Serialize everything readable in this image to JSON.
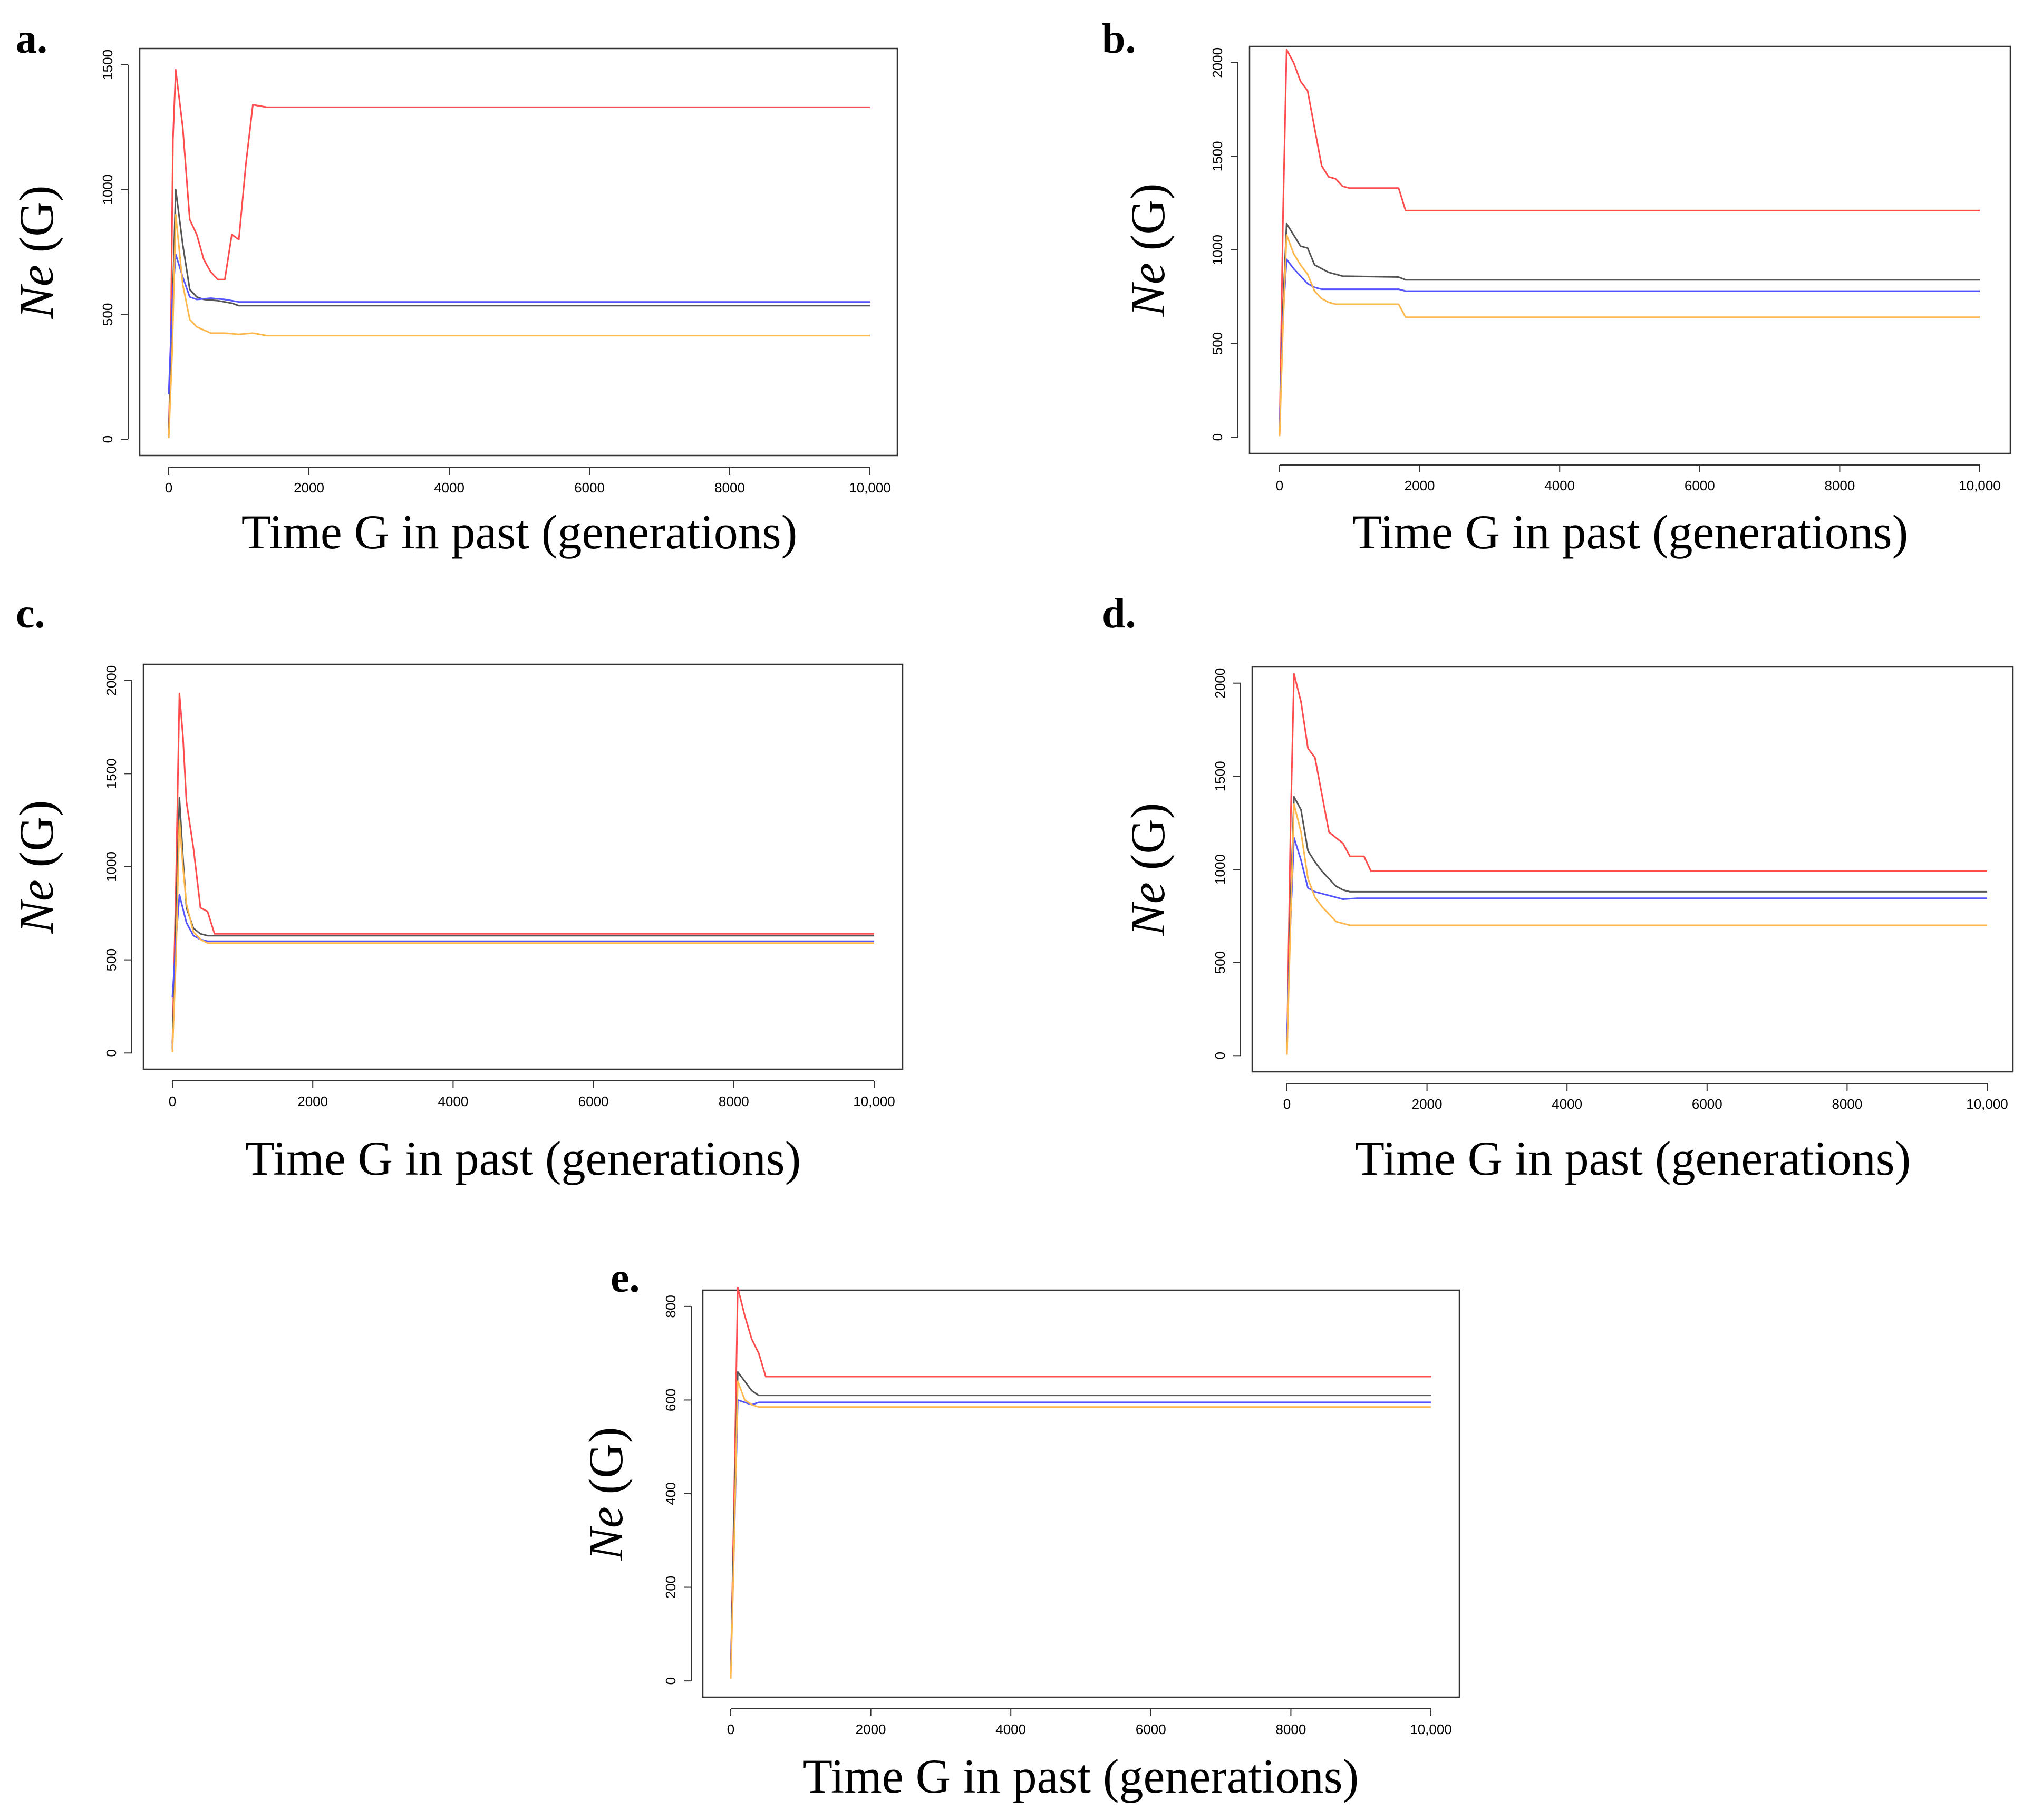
{
  "series_names": [
    "red",
    "black",
    "blue",
    "orange"
  ],
  "colors": {
    "red": "#ff4d4d",
    "black": "#555555",
    "blue": "#5555ff",
    "orange": "#ffb84d"
  },
  "chart_data": [
    {
      "panel": "a.",
      "type": "line",
      "xlabel": "Time G in past (generations)",
      "ylabel_italic": "Ne",
      "ylabel_rest": " (G)",
      "xlim": [
        0,
        10000
      ],
      "ylim": [
        0,
        1500
      ],
      "xticks": [
        0,
        2000,
        4000,
        6000,
        8000,
        10000
      ],
      "xtick_labels": [
        "0",
        "2000",
        "4000",
        "6000",
        "8000",
        "10,000"
      ],
      "yticks": [
        0,
        500,
        1000,
        1500
      ],
      "ytick_labels": [
        "0",
        "500",
        "1000",
        "1500"
      ],
      "series": [
        {
          "name": "red",
          "points": [
            [
              0,
              20
            ],
            [
              30,
              400
            ],
            [
              60,
              1200
            ],
            [
              100,
              1480
            ],
            [
              200,
              1250
            ],
            [
              300,
              880
            ],
            [
              400,
              820
            ],
            [
              500,
              720
            ],
            [
              600,
              670
            ],
            [
              700,
              640
            ],
            [
              800,
              640
            ],
            [
              900,
              820
            ],
            [
              1000,
              800
            ],
            [
              1100,
              1100
            ],
            [
              1200,
              1340
            ],
            [
              1400,
              1330
            ],
            [
              10000,
              1330
            ]
          ]
        },
        {
          "name": "black",
          "points": [
            [
              0,
              10
            ],
            [
              50,
              500
            ],
            [
              100,
              1000
            ],
            [
              200,
              780
            ],
            [
              300,
              600
            ],
            [
              400,
              570
            ],
            [
              500,
              560
            ],
            [
              700,
              555
            ],
            [
              900,
              545
            ],
            [
              1000,
              535
            ],
            [
              10000,
              535
            ]
          ]
        },
        {
          "name": "blue",
          "points": [
            [
              0,
              180
            ],
            [
              50,
              550
            ],
            [
              100,
              740
            ],
            [
              200,
              650
            ],
            [
              300,
              570
            ],
            [
              400,
              560
            ],
            [
              600,
              565
            ],
            [
              800,
              560
            ],
            [
              1000,
              550
            ],
            [
              10000,
              550
            ]
          ]
        },
        {
          "name": "orange",
          "points": [
            [
              0,
              5
            ],
            [
              50,
              350
            ],
            [
              100,
              900
            ],
            [
              200,
              620
            ],
            [
              300,
              480
            ],
            [
              400,
              450
            ],
            [
              600,
              425
            ],
            [
              800,
              425
            ],
            [
              1000,
              420
            ],
            [
              1200,
              425
            ],
            [
              1400,
              415
            ],
            [
              10000,
              415
            ]
          ]
        }
      ]
    },
    {
      "panel": "b.",
      "type": "line",
      "xlabel": "Time G in past (generations)",
      "ylabel_italic": "Ne",
      "ylabel_rest": " (G)",
      "xlim": [
        0,
        10000
      ],
      "ylim": [
        0,
        2000
      ],
      "xticks": [
        0,
        2000,
        4000,
        6000,
        8000,
        10000
      ],
      "xtick_labels": [
        "0",
        "2000",
        "4000",
        "6000",
        "8000",
        "10,000"
      ],
      "yticks": [
        0,
        500,
        1000,
        1500,
        2000
      ],
      "ytick_labels": [
        "0",
        "500",
        "1000",
        "1500",
        "2000"
      ],
      "series": [
        {
          "name": "red",
          "points": [
            [
              0,
              10
            ],
            [
              50,
              1200
            ],
            [
              100,
              2070
            ],
            [
              200,
              2000
            ],
            [
              300,
              1900
            ],
            [
              400,
              1850
            ],
            [
              500,
              1650
            ],
            [
              600,
              1450
            ],
            [
              700,
              1390
            ],
            [
              800,
              1380
            ],
            [
              900,
              1340
            ],
            [
              1000,
              1330
            ],
            [
              1700,
              1330
            ],
            [
              1800,
              1210
            ],
            [
              10000,
              1210
            ]
          ]
        },
        {
          "name": "black",
          "points": [
            [
              0,
              20
            ],
            [
              50,
              700
            ],
            [
              100,
              1140
            ],
            [
              200,
              1080
            ],
            [
              300,
              1020
            ],
            [
              400,
              1010
            ],
            [
              500,
              920
            ],
            [
              600,
              900
            ],
            [
              700,
              880
            ],
            [
              900,
              860
            ],
            [
              1700,
              855
            ],
            [
              1800,
              840
            ],
            [
              10000,
              840
            ]
          ]
        },
        {
          "name": "blue",
          "points": [
            [
              0,
              50
            ],
            [
              50,
              650
            ],
            [
              100,
              950
            ],
            [
              200,
              900
            ],
            [
              300,
              860
            ],
            [
              400,
              820
            ],
            [
              500,
              800
            ],
            [
              600,
              790
            ],
            [
              1700,
              790
            ],
            [
              1800,
              780
            ],
            [
              10000,
              780
            ]
          ]
        },
        {
          "name": "orange",
          "points": [
            [
              0,
              5
            ],
            [
              50,
              600
            ],
            [
              100,
              1080
            ],
            [
              200,
              980
            ],
            [
              300,
              920
            ],
            [
              400,
              870
            ],
            [
              500,
              780
            ],
            [
              600,
              740
            ],
            [
              700,
              720
            ],
            [
              800,
              710
            ],
            [
              1700,
              710
            ],
            [
              1800,
              640
            ],
            [
              10000,
              640
            ]
          ]
        }
      ]
    },
    {
      "panel": "c.",
      "type": "line",
      "xlabel": "Time G in past (generations)",
      "ylabel_italic": "Ne",
      "ylabel_rest": " (G)",
      "xlim": [
        0,
        10000
      ],
      "ylim": [
        0,
        2000
      ],
      "xticks": [
        0,
        2000,
        4000,
        6000,
        8000,
        10000
      ],
      "xtick_labels": [
        "0",
        "2000",
        "4000",
        "6000",
        "8000",
        "10,000"
      ],
      "yticks": [
        0,
        500,
        1000,
        1500,
        2000
      ],
      "ytick_labels": [
        "0",
        "500",
        "1000",
        "1500",
        "2000"
      ],
      "series": [
        {
          "name": "red",
          "points": [
            [
              0,
              50
            ],
            [
              50,
              900
            ],
            [
              100,
              1930
            ],
            [
              150,
              1700
            ],
            [
              200,
              1350
            ],
            [
              300,
              1100
            ],
            [
              400,
              780
            ],
            [
              500,
              760
            ],
            [
              600,
              640
            ],
            [
              10000,
              640
            ]
          ]
        },
        {
          "name": "black",
          "points": [
            [
              0,
              20
            ],
            [
              50,
              700
            ],
            [
              100,
              1370
            ],
            [
              150,
              1050
            ],
            [
              200,
              780
            ],
            [
              300,
              670
            ],
            [
              400,
              640
            ],
            [
              500,
              630
            ],
            [
              10000,
              630
            ]
          ]
        },
        {
          "name": "blue",
          "points": [
            [
              0,
              300
            ],
            [
              50,
              600
            ],
            [
              100,
              850
            ],
            [
              200,
              700
            ],
            [
              300,
              630
            ],
            [
              400,
              610
            ],
            [
              500,
              600
            ],
            [
              10000,
              600
            ]
          ]
        },
        {
          "name": "orange",
          "points": [
            [
              0,
              5
            ],
            [
              50,
              500
            ],
            [
              100,
              1250
            ],
            [
              150,
              1000
            ],
            [
              200,
              800
            ],
            [
              300,
              650
            ],
            [
              400,
              610
            ],
            [
              500,
              590
            ],
            [
              10000,
              590
            ]
          ]
        }
      ]
    },
    {
      "panel": "d.",
      "type": "line",
      "xlabel": "Time G in past (generations)",
      "ylabel_italic": "Ne",
      "ylabel_rest": " (G)",
      "xlim": [
        0,
        10000
      ],
      "ylim": [
        0,
        2000
      ],
      "xticks": [
        0,
        2000,
        4000,
        6000,
        8000,
        10000
      ],
      "xtick_labels": [
        "0",
        "2000",
        "4000",
        "6000",
        "8000",
        "10,000"
      ],
      "yticks": [
        0,
        500,
        1000,
        1500,
        2000
      ],
      "ytick_labels": [
        "0",
        "500",
        "1000",
        "1500",
        "2000"
      ],
      "series": [
        {
          "name": "red",
          "points": [
            [
              0,
              30
            ],
            [
              50,
              1200
            ],
            [
              100,
              2050
            ],
            [
              200,
              1900
            ],
            [
              300,
              1650
            ],
            [
              400,
              1600
            ],
            [
              500,
              1400
            ],
            [
              600,
              1200
            ],
            [
              700,
              1170
            ],
            [
              800,
              1140
            ],
            [
              900,
              1070
            ],
            [
              1100,
              1070
            ],
            [
              1200,
              990
            ],
            [
              10000,
              990
            ]
          ]
        },
        {
          "name": "black",
          "points": [
            [
              0,
              20
            ],
            [
              50,
              800
            ],
            [
              100,
              1390
            ],
            [
              200,
              1320
            ],
            [
              300,
              1100
            ],
            [
              400,
              1040
            ],
            [
              500,
              990
            ],
            [
              600,
              950
            ],
            [
              700,
              910
            ],
            [
              800,
              890
            ],
            [
              900,
              880
            ],
            [
              10000,
              880
            ]
          ]
        },
        {
          "name": "blue",
          "points": [
            [
              0,
              100
            ],
            [
              50,
              700
            ],
            [
              100,
              1170
            ],
            [
              200,
              1050
            ],
            [
              300,
              900
            ],
            [
              400,
              880
            ],
            [
              500,
              870
            ],
            [
              600,
              860
            ],
            [
              800,
              840
            ],
            [
              1000,
              845
            ],
            [
              1200,
              845
            ],
            [
              10000,
              845
            ]
          ]
        },
        {
          "name": "orange",
          "points": [
            [
              0,
              5
            ],
            [
              50,
              700
            ],
            [
              100,
              1350
            ],
            [
              200,
              1200
            ],
            [
              300,
              950
            ],
            [
              400,
              850
            ],
            [
              500,
              800
            ],
            [
              600,
              760
            ],
            [
              700,
              720
            ],
            [
              800,
              710
            ],
            [
              900,
              700
            ],
            [
              10000,
              700
            ]
          ]
        }
      ]
    },
    {
      "panel": "e.",
      "type": "line",
      "xlabel": "Time G in past (generations)",
      "ylabel_italic": "Ne",
      "ylabel_rest": " (G)",
      "xlim": [
        0,
        10000
      ],
      "ylim": [
        0,
        800
      ],
      "xticks": [
        0,
        2000,
        4000,
        6000,
        8000,
        10000
      ],
      "xtick_labels": [
        "0",
        "2000",
        "4000",
        "6000",
        "8000",
        "10,000"
      ],
      "yticks": [
        0,
        200,
        400,
        600,
        800
      ],
      "ytick_labels": [
        "0",
        "200",
        "400",
        "600",
        "800"
      ],
      "series": [
        {
          "name": "red",
          "points": [
            [
              0,
              20
            ],
            [
              50,
              400
            ],
            [
              100,
              840
            ],
            [
              200,
              780
            ],
            [
              300,
              730
            ],
            [
              400,
              700
            ],
            [
              500,
              650
            ],
            [
              10000,
              650
            ]
          ]
        },
        {
          "name": "black",
          "points": [
            [
              0,
              20
            ],
            [
              50,
              350
            ],
            [
              100,
              660
            ],
            [
              200,
              640
            ],
            [
              300,
              620
            ],
            [
              400,
              610
            ],
            [
              10000,
              610
            ]
          ]
        },
        {
          "name": "blue",
          "points": [
            [
              0,
              20
            ],
            [
              50,
              300
            ],
            [
              100,
              600
            ],
            [
              200,
              595
            ],
            [
              300,
              590
            ],
            [
              400,
              595
            ],
            [
              10000,
              595
            ]
          ]
        },
        {
          "name": "orange",
          "points": [
            [
              0,
              5
            ],
            [
              50,
              300
            ],
            [
              100,
              640
            ],
            [
              200,
              600
            ],
            [
              300,
              590
            ],
            [
              400,
              585
            ],
            [
              10000,
              585
            ]
          ]
        }
      ]
    }
  ]
}
